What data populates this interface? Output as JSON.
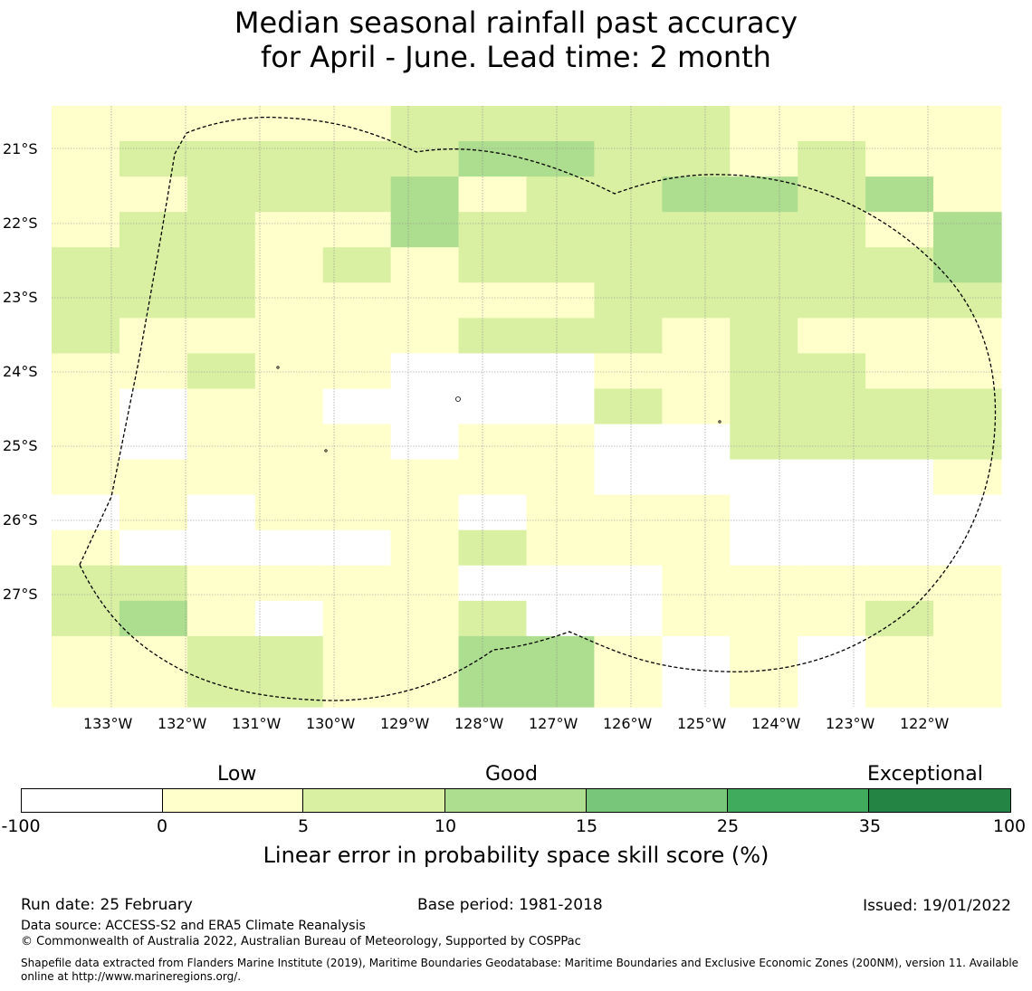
{
  "title": {
    "line1": "Median seasonal rainfall past accuracy",
    "line2": "for April - June. Lead time: 2 month"
  },
  "map": {
    "lat_labels": [
      "21°S",
      "22°S",
      "23°S",
      "24°S",
      "25°S",
      "26°S",
      "27°S"
    ],
    "lon_labels": [
      "133°W",
      "132°W",
      "131°W",
      "130°W",
      "129°W",
      "128°W",
      "127°W",
      "126°W",
      "125°W",
      "124°W",
      "123°W",
      "122°W"
    ],
    "grid_rows": [
      "11111222221111",
      "12222233221211",
      "11222312233231",
      "12211322222213",
      "22212122222223",
      "22211111222222",
      "21111122212111",
      "11211000112211",
      "10110000212222",
      "10111011002222",
      "11111111000001",
      "01011101110000",
      "10000121110000",
      "22111100011111",
      "23101120011121",
      "11221133101011",
      "11221133101011"
    ],
    "bin_colors": [
      "#ffffff",
      "#ffffcc",
      "#d9f0a3",
      "#addd8e",
      "#78c679",
      "#41ab5d",
      "#238443"
    ]
  },
  "colorbar": {
    "categories": [
      "Low",
      "Good",
      "Exceptional"
    ],
    "ticks": [
      "-100",
      "0",
      "5",
      "10",
      "15",
      "25",
      "35",
      "100"
    ],
    "colors": [
      "#ffffff",
      "#ffffcc",
      "#d9f0a3",
      "#addd8e",
      "#78c679",
      "#41ab5d",
      "#238443"
    ],
    "label": "Linear error in probability space skill score (%)"
  },
  "footer": {
    "run_date": "Run date: 25 February",
    "base_period": "Base period: 1981-2018",
    "issued": "Issued: 19/01/2022",
    "data_source": "Data source: ACCESS-S2 and ERA5 Climate Reanalysis",
    "copyright": "© Commonwealth of Australia 2022, Australian Bureau of Meteorology, Supported by COSPPac",
    "shapefile_line1": "Shapefile data extracted from Flanders Marine Institute (2019), Maritime Boundaries Geodatabase: Maritime Boundaries and Exclusive Economic Zones (200NM), version 11. Available",
    "shapefile_line2": "online at http://www.marineregions.org/."
  }
}
